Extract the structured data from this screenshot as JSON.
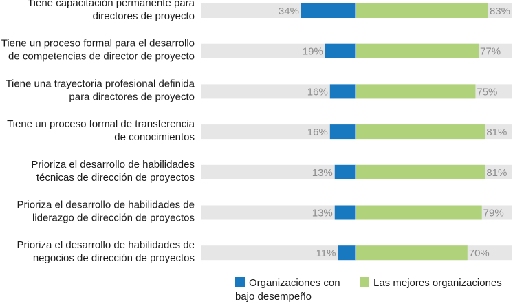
{
  "chart_data": {
    "type": "bar",
    "orientation": "horizontal-diverging",
    "title": "",
    "xlabel": "",
    "ylabel": "",
    "xlim": [
      -100,
      100
    ],
    "grid": false,
    "legend_position": "bottom",
    "categories": [
      [
        "Tiene capacitación permanente para",
        "directores de proyecto"
      ],
      [
        "Tiene un proceso formal para el desarrollo",
        "de competencias de director de proyecto"
      ],
      [
        "Tiene una trayectoria profesional definida",
        "para directores de proyecto"
      ],
      [
        "Tiene un proceso formal de transferencia",
        "de conocimientos"
      ],
      [
        "Prioriza el desarrollo de habilidades",
        "técnicas de dirección de proyectos"
      ],
      [
        "Prioriza el desarrollo de habilidades de",
        "liderazgo de dirección de proyectos"
      ],
      [
        "Prioriza el desarrollo de habilidades de",
        "negocios de dirección de proyectos"
      ]
    ],
    "series": [
      {
        "name": "Organizaciones con bajo desempeño",
        "color": "#1878c0",
        "values": [
          34,
          19,
          16,
          16,
          13,
          13,
          11
        ],
        "labels": [
          "34%",
          "19%",
          "16%",
          "16%",
          "13%",
          "13%",
          "11%"
        ]
      },
      {
        "name": "Las mejores organizaciones",
        "color": "#afd27a",
        "values": [
          83,
          77,
          75,
          81,
          81,
          79,
          70
        ],
        "labels": [
          "83%",
          "77%",
          "75%",
          "81%",
          "81%",
          "79%",
          "70%"
        ]
      }
    ],
    "track_color": "#e6e6e6"
  },
  "legend": {
    "low_line1": "Organizaciones con",
    "low_line2": "bajo desempeño",
    "best": "Las mejores organizaciones"
  }
}
